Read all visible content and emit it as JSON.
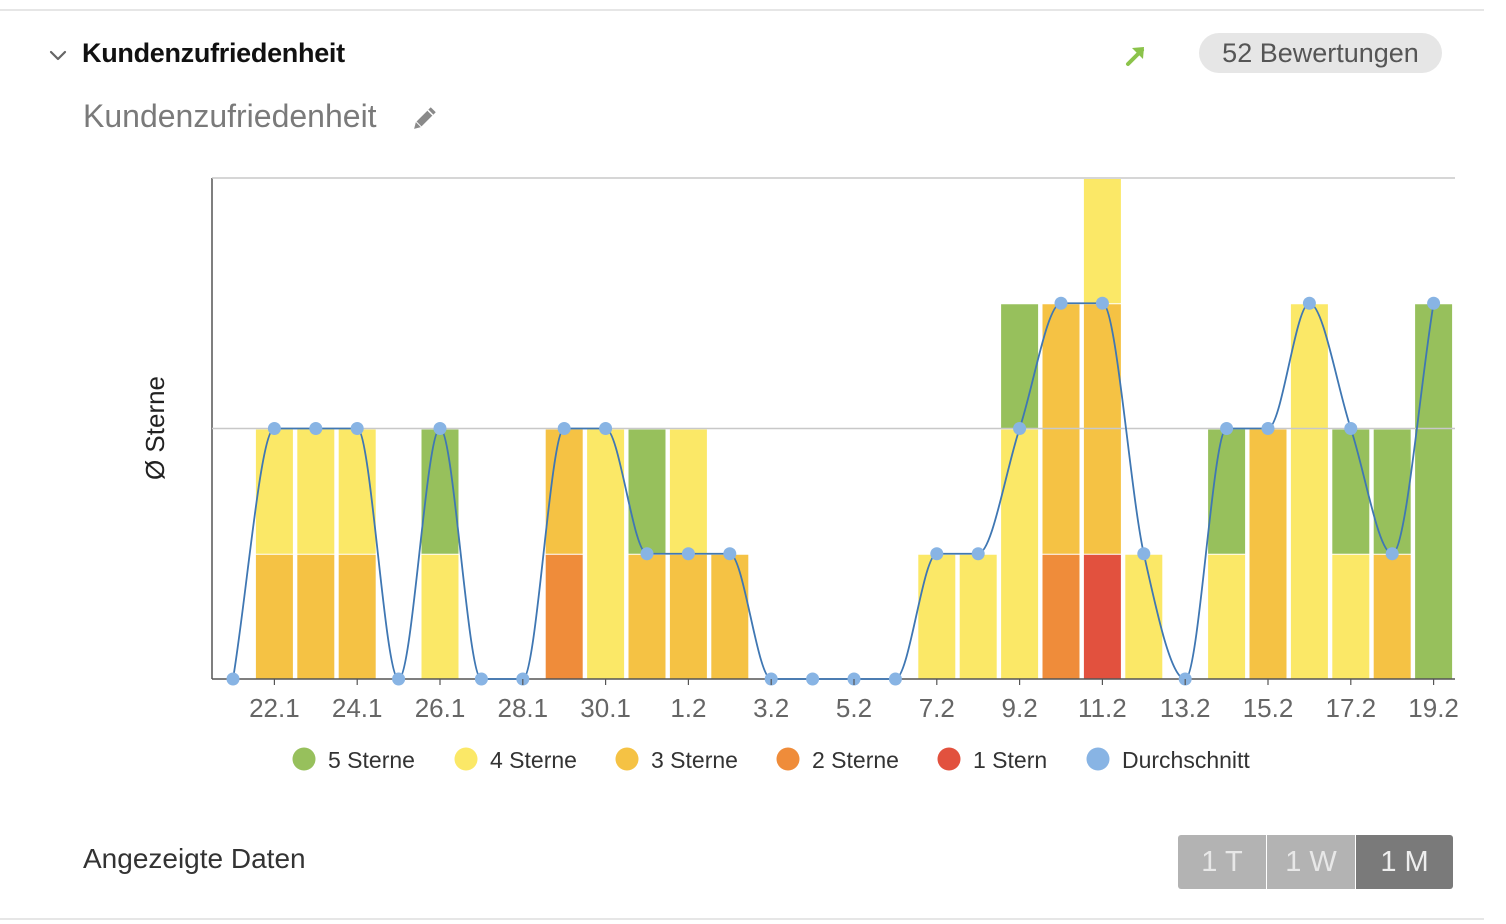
{
  "header": {
    "title": "Kundenzufriedenheit",
    "trend_icon": "trend-up-arrow-icon",
    "trend_color": "#8bc34a",
    "badge": "52 Bewertungen"
  },
  "widget": {
    "subtitle": "Kundenzufriedenheit",
    "edit_icon": "pencil-icon"
  },
  "footer": {
    "shown_label": "Angezeigte Daten",
    "ranges": [
      {
        "label": "1 T",
        "active": false
      },
      {
        "label": "1 W",
        "active": false
      },
      {
        "label": "1 M",
        "active": true
      }
    ]
  },
  "chart_data": {
    "type": "bar",
    "stacked": true,
    "ylabel": "Ø Sterne",
    "ylim": [
      0,
      4
    ],
    "grid": true,
    "x_tick_labels": [
      "22.1",
      "24.1",
      "26.1",
      "28.1",
      "30.1",
      "1.2",
      "3.2",
      "5.2",
      "7.2",
      "9.2",
      "11.2",
      "13.2",
      "15.2",
      "17.2",
      "19.2"
    ],
    "categories": [
      "21.1",
      "22.1",
      "23.1",
      "24.1",
      "25.1",
      "26.1",
      "27.1",
      "28.1",
      "29.1",
      "30.1",
      "31.1",
      "1.2",
      "2.2",
      "3.2",
      "4.2",
      "5.2",
      "6.2",
      "7.2",
      "8.2",
      "9.2",
      "10.2",
      "11.2",
      "12.2",
      "13.2",
      "14.2",
      "15.2",
      "16.2",
      "17.2",
      "18.2",
      "19.2"
    ],
    "series": [
      {
        "name": "5 Sterne",
        "color": "#97c05c",
        "values": [
          0,
          0,
          0,
          0,
          0,
          1,
          0,
          0,
          0,
          0,
          1,
          0,
          0,
          0,
          0,
          0,
          0,
          0,
          0,
          1,
          0,
          0,
          0,
          0,
          1,
          0,
          0,
          1,
          1,
          3
        ]
      },
      {
        "name": "4 Sterne",
        "color": "#fbe867",
        "values": [
          0,
          1,
          1,
          1,
          0,
          1,
          0,
          0,
          0,
          2,
          0,
          1,
          0,
          0,
          0,
          0,
          0,
          1,
          1,
          2,
          0,
          1,
          1,
          0,
          1,
          0,
          3,
          1,
          0,
          0
        ]
      },
      {
        "name": "3 Sterne",
        "color": "#f5c244",
        "values": [
          0,
          1,
          1,
          1,
          0,
          0,
          0,
          0,
          1,
          0,
          1,
          1,
          1,
          0,
          0,
          0,
          0,
          0,
          0,
          0,
          2,
          2,
          0,
          0,
          0,
          2,
          0,
          0,
          1,
          0
        ]
      },
      {
        "name": "2 Sterne",
        "color": "#ef8c3a",
        "values": [
          0,
          0,
          0,
          0,
          0,
          0,
          0,
          0,
          1,
          0,
          0,
          0,
          0,
          0,
          0,
          0,
          0,
          0,
          0,
          0,
          1,
          0,
          0,
          0,
          0,
          0,
          0,
          0,
          0,
          0
        ]
      },
      {
        "name": "1 Stern",
        "color": "#e2513e",
        "values": [
          0,
          0,
          0,
          0,
          0,
          0,
          0,
          0,
          0,
          0,
          0,
          0,
          0,
          0,
          0,
          0,
          0,
          0,
          0,
          0,
          0,
          1,
          0,
          0,
          0,
          0,
          0,
          0,
          0,
          0
        ]
      }
    ],
    "line_series": {
      "name": "Durchschnitt",
      "color": "#88b4e4",
      "values": [
        0,
        2,
        2,
        2,
        0,
        2,
        0,
        0,
        2,
        2,
        1,
        1,
        1,
        0,
        0,
        0,
        0,
        1,
        1,
        2,
        3,
        3,
        1,
        0,
        2,
        2,
        3,
        2,
        1,
        3
      ]
    },
    "legend": {
      "position": "bottom"
    }
  }
}
